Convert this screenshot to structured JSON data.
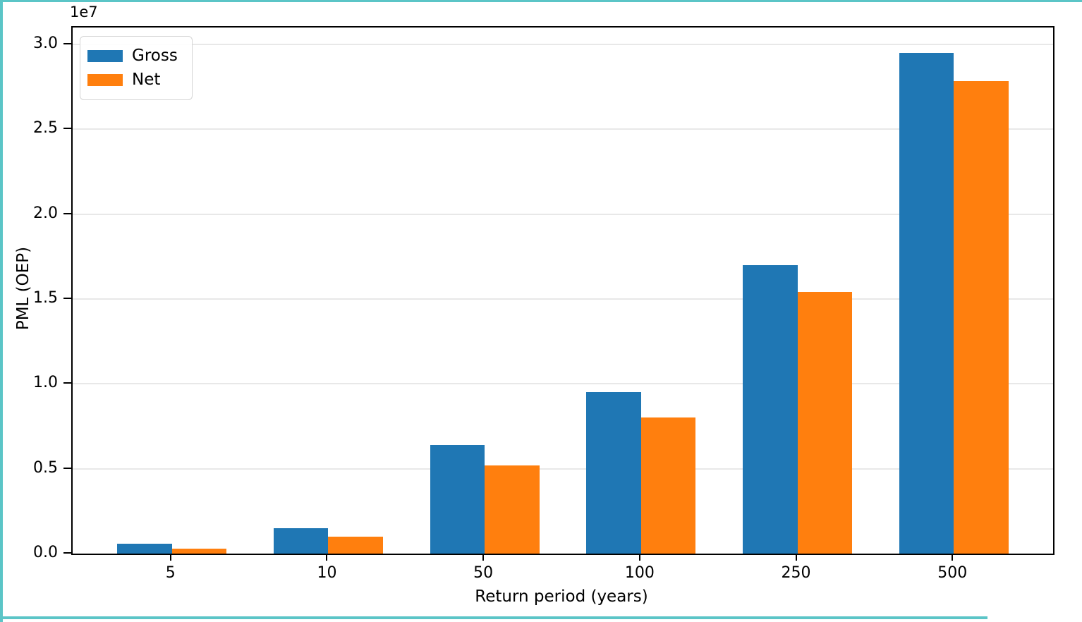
{
  "frame": {
    "accent_color": "#5bc5c7",
    "background": "#ffffff"
  },
  "chart_data": {
    "type": "bar",
    "title": "",
    "xlabel": "Return period (years)",
    "ylabel": "PML (OEP)",
    "offset_text": "1e7",
    "categories": [
      "5",
      "10",
      "50",
      "100",
      "250",
      "500"
    ],
    "series": [
      {
        "name": "Gross",
        "color": "#1f77b4",
        "values": [
          600000,
          1500000,
          6400000,
          9500000,
          17000000,
          29500000
        ]
      },
      {
        "name": "Net",
        "color": "#ff7f0e",
        "values": [
          300000,
          1000000,
          5200000,
          8000000,
          15400000,
          27850000
        ]
      }
    ],
    "ylim": [
      0,
      31000000
    ],
    "y_ticks": [
      {
        "value": 0,
        "label": "0.0"
      },
      {
        "value": 5000000,
        "label": "0.5"
      },
      {
        "value": 10000000,
        "label": "1.0"
      },
      {
        "value": 15000000,
        "label": "1.5"
      },
      {
        "value": 20000000,
        "label": "2.0"
      },
      {
        "value": 25000000,
        "label": "2.5"
      },
      {
        "value": 30000000,
        "label": "3.0"
      }
    ],
    "grid": "horizontal",
    "legend_position": "upper-left",
    "gridline_color": "#e8e8e8"
  }
}
